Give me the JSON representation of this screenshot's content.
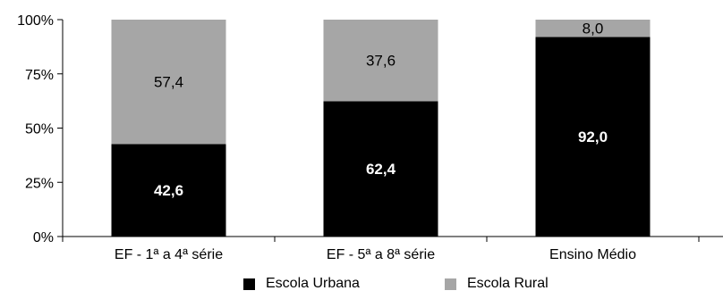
{
  "chart_data": {
    "type": "bar",
    "stacked": true,
    "percent": true,
    "categories": [
      "EF - 1ª a 4ª série",
      "EF - 5ª a 8ª série",
      "Ensino Médio"
    ],
    "series": [
      {
        "name": "Escola Urbana",
        "values": [
          42.6,
          62.4,
          92.0
        ],
        "labels": [
          "42,6",
          "62,4",
          "92,0"
        ],
        "color": "#000000",
        "label_color": "#ffffff"
      },
      {
        "name": "Escola Rural",
        "values": [
          57.4,
          37.6,
          8.0
        ],
        "labels": [
          "57,4",
          "37,6",
          "8,0"
        ],
        "color": "#a6a6a6",
        "label_color": "#000000"
      }
    ],
    "yticks": [
      "0%",
      "25%",
      "50%",
      "75%",
      "100%"
    ],
    "ylim": [
      0,
      100
    ],
    "grid": false,
    "legend_position": "bottom"
  }
}
